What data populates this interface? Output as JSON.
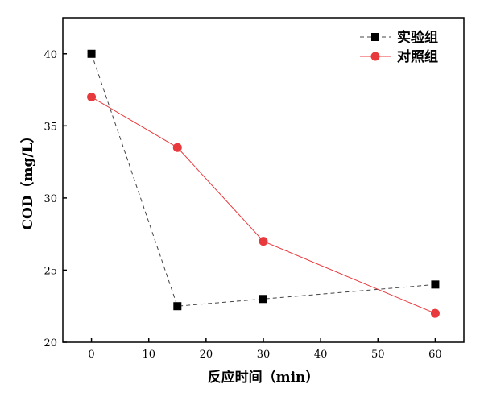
{
  "chart_data": {
    "type": "line",
    "title": "",
    "xlabel": "反应时间（min）",
    "ylabel": "COD（mg/L）",
    "xlim": [
      -5,
      65
    ],
    "ylim": [
      20,
      42.5
    ],
    "xticks": [
      0,
      10,
      20,
      30,
      40,
      50,
      60
    ],
    "yticks": [
      20,
      25,
      30,
      35,
      40
    ],
    "grid": false,
    "legend_position": "top-right",
    "series": [
      {
        "name": "实验组",
        "x": [
          0,
          15,
          30,
          60
        ],
        "values": [
          40,
          22.5,
          23,
          24
        ],
        "color": "#000000",
        "marker": "square",
        "line": "dashed",
        "line_color": "#444444"
      },
      {
        "name": "对照组",
        "x": [
          0,
          15,
          30,
          60
        ],
        "values": [
          37,
          33.5,
          27,
          22
        ],
        "color": "#e8393c",
        "marker": "circle",
        "line": "solid",
        "line_color": "#e8393c"
      }
    ]
  }
}
